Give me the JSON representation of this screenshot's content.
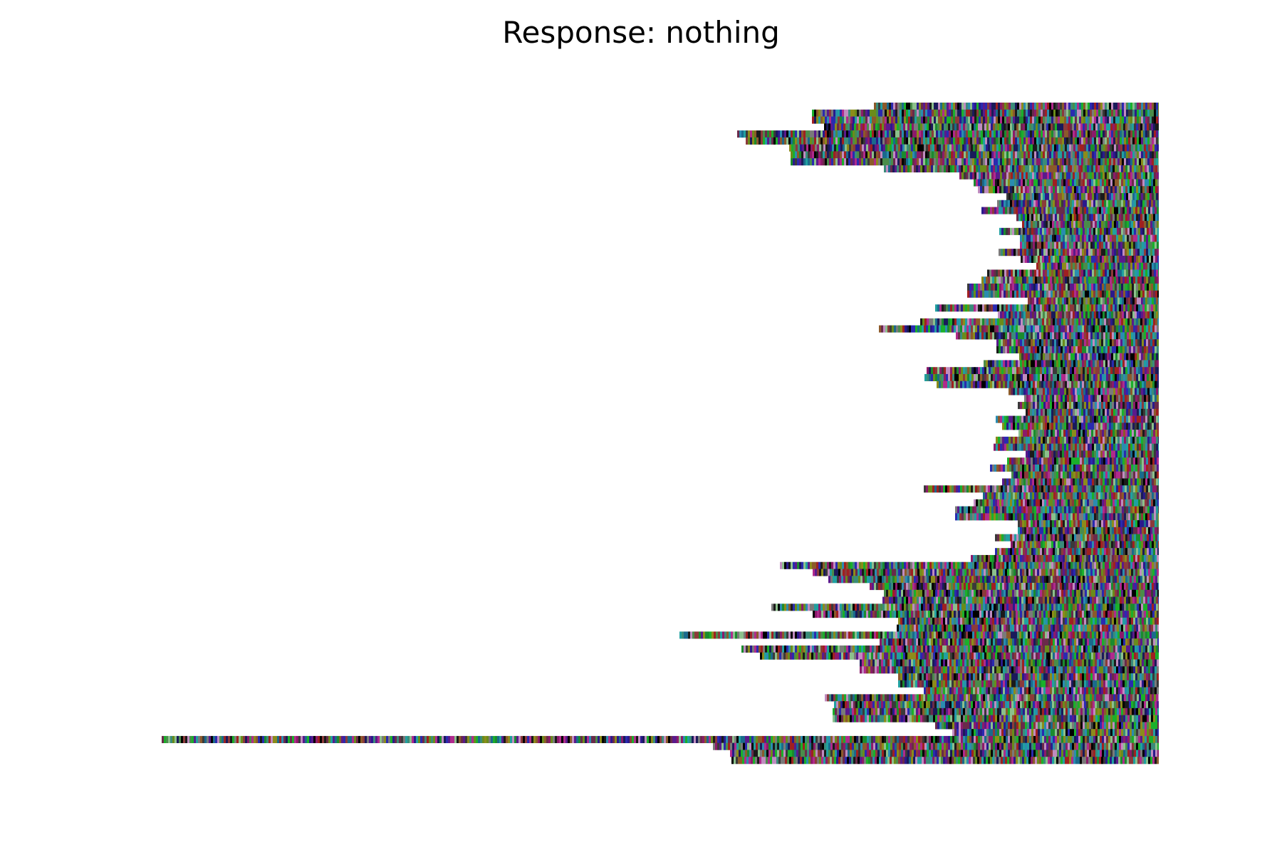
{
  "chart_data": {
    "type": "heatmap",
    "title": "Response: nothing",
    "xlabel": "",
    "ylabel": "",
    "axes_visible": false,
    "grid": false,
    "legend": "none",
    "alignment": "right",
    "row_count": 95,
    "max_row_length": 1400,
    "row_lengths": [
      400,
      487,
      487,
      470,
      592,
      580,
      519,
      517,
      517,
      386,
      280,
      260,
      254,
      214,
      227,
      249,
      200,
      192,
      224,
      195,
      195,
      225,
      194,
      172,
      241,
      249,
      269,
      269,
      184,
      314,
      226,
      335,
      393,
      285,
      228,
      228,
      196,
      246,
      326,
      329,
      312,
      211,
      189,
      198,
      187,
      229,
      220,
      197,
      229,
      232,
      187,
      213,
      237,
      207,
      220,
      330,
      247,
      260,
      286,
      286,
      198,
      198,
      230,
      208,
      230,
      264,
      532,
      486,
      464,
      406,
      386,
      388,
      544,
      486,
      366,
      368,
      673,
      392,
      586,
      560,
      420,
      420,
      366,
      366,
      330,
      469,
      456,
      458,
      458,
      314,
      290,
      1400,
      626,
      602,
      600
    ],
    "segment_colors": [
      "#8c1a6a",
      "#1a8c2e",
      "#2a1a8c",
      "#6a8c1a",
      "#1a6a8c",
      "#000000",
      "#8c3a3a",
      "#3a8c7a",
      "#7a7a7a",
      "#5a1a8c",
      "#1a1a5a",
      "#8c8c1a",
      "#b02a8c",
      "#2a8cb0",
      "#1ab02a",
      "#3a3a3a",
      "#8c5a2a",
      "#2a2ab0",
      "#6a2a4a",
      "#4a8c4a",
      "#c08cc0",
      "#8cc08c",
      "#1a1a1a",
      "#a02020",
      "#20a0a0"
    ]
  }
}
